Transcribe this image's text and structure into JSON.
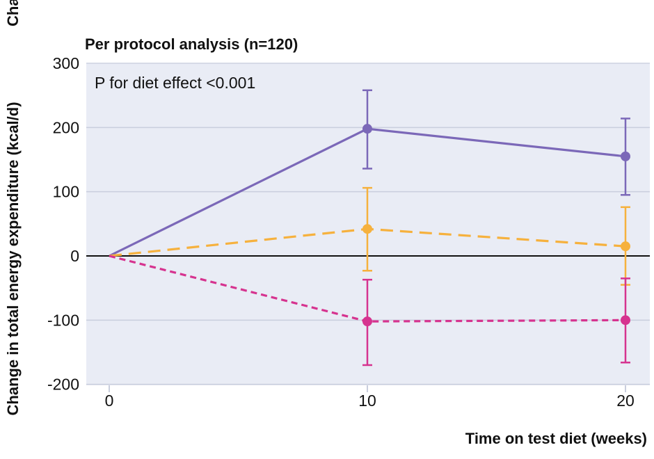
{
  "chart_data": {
    "type": "line",
    "title": "Per protocol analysis (n=120)",
    "top_cropped_label": "Cha",
    "annotation": "P for diet effect <0.001",
    "xlabel": "Time on test diet (weeks)",
    "ylabel": "Change in total energy expenditure (kcal/d)",
    "x": [
      0,
      10,
      20
    ],
    "xticks": [
      "0",
      "10",
      "20"
    ],
    "yticks": [
      "300",
      "200",
      "100",
      "0",
      "-100",
      "-200"
    ],
    "ylim": [
      -200,
      300
    ],
    "xlim": [
      0,
      20.5
    ],
    "grid": true,
    "series": [
      {
        "style": "solid",
        "color": "#7b68b8",
        "values": [
          0,
          198,
          155
        ],
        "err_low": [
          null,
          136,
          95
        ],
        "err_high": [
          null,
          258,
          214
        ]
      },
      {
        "style": "dashed",
        "color": "#f6b13d",
        "values": [
          0,
          42,
          15
        ],
        "err_low": [
          null,
          -23,
          -45
        ],
        "err_high": [
          null,
          106,
          76
        ]
      },
      {
        "style": "dotted-dash",
        "color": "#d6338f",
        "values": [
          0,
          -102,
          -100
        ],
        "err_low": [
          null,
          -170,
          -166
        ],
        "err_high": [
          null,
          -37,
          -35
        ]
      }
    ]
  }
}
